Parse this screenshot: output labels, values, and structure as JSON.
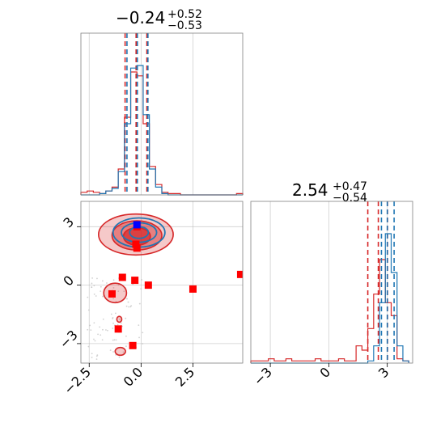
{
  "colors": {
    "series_red": "#d62728",
    "series_blue": "#1f77b4",
    "marker_red": "#ff0000",
    "marker_blue": "#0000ff",
    "grid": "#b0b0b0",
    "scatter_gray": "#bdbdbd"
  },
  "chart_data": {
    "type": "corner",
    "panels": [
      {
        "kind": "histogram",
        "param_index": 0,
        "title": {
          "main": "−0.24",
          "sup": "+0.52",
          "sub": "−0.53"
        },
        "xlim": [
          -2.9,
          4.9
        ],
        "grid": true,
        "series": [
          {
            "color": "#d62728",
            "bin_edges": [
              -2.9,
              -2.6,
              -2.3,
              -2.0,
              -1.7,
              -1.4,
              -1.1,
              -0.8,
              -0.5,
              -0.2,
              0.1,
              0.4,
              0.7,
              1.0,
              1.3,
              1.6,
              1.9,
              2.2,
              2.5,
              2.8,
              3.1,
              3.4,
              3.7,
              4.0,
              4.3,
              4.6,
              4.9
            ],
            "counts": [
              2,
              3,
              2,
              1,
              3,
              6,
              20,
              60,
              95,
              92,
              55,
              22,
              8,
              2,
              1,
              1,
              0,
              0,
              0,
              0,
              0,
              0,
              0,
              0,
              0,
              1
            ],
            "quantiles": [
              -0.77,
              -0.24,
              0.28
            ]
          },
          {
            "color": "#1f77b4",
            "bin_edges": [
              -2.9,
              -2.6,
              -2.3,
              -2.0,
              -1.7,
              -1.4,
              -1.1,
              -0.8,
              -0.5,
              -0.2,
              0.1,
              0.4,
              0.7,
              1.0,
              1.3,
              1.6,
              1.9,
              2.2,
              2.5,
              2.8,
              3.1,
              3.4,
              3.7,
              4.0,
              4.3,
              4.6,
              4.9
            ],
            "counts": [
              0,
              0,
              0,
              1,
              3,
              5,
              18,
              55,
              98,
              100,
              62,
              20,
              6,
              1,
              0,
              0,
              0,
              0,
              0,
              0,
              0,
              0,
              0,
              0,
              0,
              0
            ],
            "quantiles": [
              -0.68,
              -0.18,
              0.33
            ]
          }
        ]
      },
      {
        "kind": "2d",
        "param_x": 0,
        "param_y": 1,
        "xlim": [
          -2.9,
          4.9
        ],
        "ylim": [
          -4.0,
          4.3
        ],
        "xticks": [
          -2.5,
          0.0,
          2.5
        ],
        "xtick_labels": [
          "−2.5",
          "0.0",
          "2.5"
        ],
        "yticks": [
          -3,
          0,
          3
        ],
        "ytick_labels": [
          "−3",
          "0",
          "3"
        ],
        "grid": true,
        "contours": [
          {
            "color": "#d62728",
            "level": "outer",
            "center": [
              -0.25,
              2.6
            ],
            "radii": [
              1.8,
              1.05
            ]
          },
          {
            "color": "#d62728",
            "level": "middle",
            "center": [
              -0.2,
              2.55
            ],
            "radii": [
              1.2,
              0.75
            ]
          },
          {
            "color": "#d62728",
            "level": "inner",
            "center": [
              -0.2,
              2.5
            ],
            "radii": [
              0.65,
              0.45
            ]
          },
          {
            "color": "#d62728",
            "level": "tail",
            "center": [
              -1.25,
              -0.4
            ],
            "radii": [
              0.55,
              0.5
            ]
          },
          {
            "color": "#d62728",
            "level": "tail",
            "center": [
              -1.05,
              -1.75
            ],
            "radii": [
              0.12,
              0.15
            ]
          },
          {
            "color": "#d62728",
            "level": "tail",
            "center": [
              -1.0,
              -3.4
            ],
            "radii": [
              0.25,
              0.2
            ]
          },
          {
            "color": "#1f77b4",
            "level": "outer",
            "center": [
              -0.1,
              2.7
            ],
            "radii": [
              1.25,
              0.75
            ]
          },
          {
            "color": "#1f77b4",
            "level": "middle",
            "center": [
              -0.1,
              2.7
            ],
            "radii": [
              0.85,
              0.5
            ]
          },
          {
            "color": "#1f77b4",
            "level": "inner",
            "center": [
              -0.1,
              2.7
            ],
            "radii": [
              0.45,
              0.3
            ]
          }
        ],
        "markers": [
          {
            "color": "#ff0000",
            "x": -0.2,
            "y": 1.9
          },
          {
            "color": "#ff0000",
            "x": -0.9,
            "y": 0.4
          },
          {
            "color": "#ff0000",
            "x": -0.3,
            "y": 0.25
          },
          {
            "color": "#ff0000",
            "x": 0.35,
            "y": 0.0
          },
          {
            "color": "#ff0000",
            "x": 2.5,
            "y": -0.2
          },
          {
            "color": "#ff0000",
            "x": 4.8,
            "y": 0.55
          },
          {
            "color": "#ff0000",
            "x": -1.4,
            "y": -0.45
          },
          {
            "color": "#ff0000",
            "x": -1.1,
            "y": -2.25
          },
          {
            "color": "#ff0000",
            "x": -0.4,
            "y": -3.1
          },
          {
            "color": "#ff0000",
            "x": -0.25,
            "y": 2.1
          },
          {
            "color": "#ff0000",
            "x": -0.2,
            "y": 3.0
          },
          {
            "color": "#0000ff",
            "x": -0.2,
            "y": 3.1
          }
        ]
      },
      {
        "kind": "histogram",
        "param_index": 1,
        "title": {
          "main": "2.54",
          "sup": "+0.47",
          "sub": "−0.54"
        },
        "xlim": [
          -4.0,
          4.3
        ],
        "xticks": [
          -3,
          0,
          3
        ],
        "xtick_labels": [
          "−3",
          "0",
          "3"
        ],
        "grid": true,
        "series": [
          {
            "color": "#d62728",
            "bin_edges": [
              -4.0,
              -3.7,
              -3.4,
              -3.1,
              -2.8,
              -2.5,
              -2.2,
              -1.9,
              -1.6,
              -1.3,
              -1.0,
              -0.7,
              -0.4,
              -0.1,
              0.2,
              0.5,
              0.8,
              1.1,
              1.4,
              1.7,
              2.0,
              2.3,
              2.6,
              2.9,
              3.2,
              3.5,
              3.8,
              4.1
            ],
            "counts": [
              1,
              1,
              1,
              2,
              1,
              1,
              2,
              1,
              1,
              1,
              1,
              2,
              1,
              1,
              1,
              2,
              1,
              1,
              8,
              6,
              16,
              32,
              48,
              28,
              22,
              2,
              1
            ],
            "quantiles": [
              2.0,
              2.54,
              3.01
            ]
          },
          {
            "color": "#1f77b4",
            "bin_edges": [
              -4.0,
              -3.7,
              -3.4,
              -3.1,
              -2.8,
              -2.5,
              -2.2,
              -1.9,
              -1.6,
              -1.3,
              -1.0,
              -0.7,
              -0.4,
              -0.1,
              0.2,
              0.5,
              0.8,
              1.1,
              1.4,
              1.7,
              2.0,
              2.3,
              2.6,
              2.9,
              3.2,
              3.5,
              3.8,
              4.1
            ],
            "counts": [
              0,
              0,
              0,
              0,
              0,
              0,
              0,
              0,
              0,
              0,
              0,
              0,
              0,
              0,
              0,
              0,
              0,
              0,
              0,
              0,
              1,
              8,
              28,
              60,
              42,
              8,
              1
            ],
            "quantiles": [
              2.7,
              3.0,
              3.35
            ]
          }
        ]
      }
    ]
  }
}
